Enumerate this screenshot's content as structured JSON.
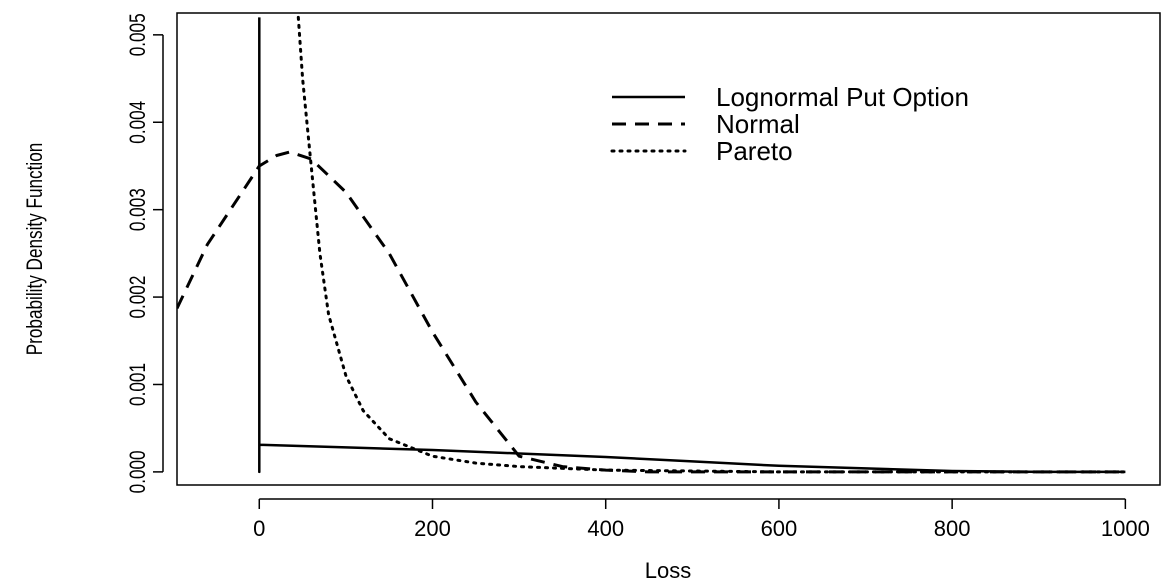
{
  "chart_data": {
    "type": "line",
    "title": "",
    "xlabel": "Loss",
    "ylabel": "Probability Density Function",
    "xlim": [
      -95,
      1040
    ],
    "ylim": [
      -0.00015,
      0.00525
    ],
    "x_ticks": [
      0,
      200,
      400,
      600,
      800,
      1000
    ],
    "x_tick_labels": [
      "0",
      "200",
      "400",
      "600",
      "800",
      "1000"
    ],
    "y_ticks": [
      0.0,
      0.001,
      0.002,
      0.003,
      0.004,
      0.005
    ],
    "y_tick_labels": [
      "0.000",
      "0.001",
      "0.002",
      "0.003",
      "0.004",
      "0.005"
    ],
    "grid": false,
    "legend_position": "top-right",
    "series": [
      {
        "name": "Lognormal Put Option",
        "style": "solid",
        "x": [
          0,
          0,
          0,
          100,
          200,
          300,
          400,
          500,
          600,
          700,
          800,
          900,
          1000
        ],
        "y": [
          0.0052,
          0.0,
          0.00031,
          0.00028,
          0.00025,
          0.00021,
          0.00017,
          0.00012,
          7e-05,
          4e-05,
          1e-05,
          0.0,
          0.0
        ]
      },
      {
        "name": "Normal",
        "style": "dashed",
        "x": [
          -95,
          -60,
          -20,
          0,
          20,
          35,
          60,
          100,
          150,
          200,
          250,
          300,
          350,
          400,
          450,
          500,
          600,
          700,
          800,
          900,
          1000
        ],
        "y": [
          0.00187,
          0.0026,
          0.0032,
          0.0035,
          0.00362,
          0.00366,
          0.00358,
          0.0032,
          0.0025,
          0.0016,
          0.0008,
          0.00018,
          6e-05,
          2e-05,
          0.0,
          0.0,
          0.0,
          0.0,
          0.0,
          0.0,
          0.0
        ]
      },
      {
        "name": "Pareto",
        "style": "dotted",
        "x": [
          45,
          50,
          60,
          70,
          80,
          100,
          120,
          150,
          200,
          250,
          300,
          400,
          500,
          600,
          800,
          1000
        ],
        "y": [
          0.0052,
          0.0045,
          0.0035,
          0.0025,
          0.0018,
          0.0011,
          0.0007,
          0.00038,
          0.00018,
          0.0001,
          6e-05,
          2e-05,
          1e-05,
          0.0,
          0.0,
          0.0
        ]
      }
    ]
  }
}
